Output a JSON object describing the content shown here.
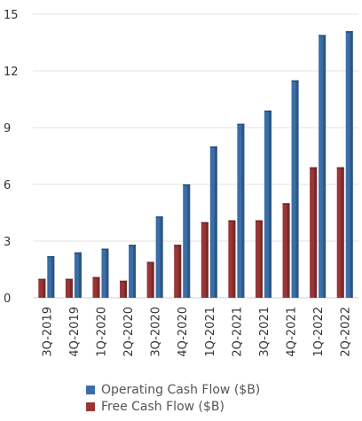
{
  "chart_data": {
    "type": "bar",
    "categories": [
      "3Q-2019",
      "4Q-2019",
      "1Q-2020",
      "2Q-2020",
      "3Q-2020",
      "4Q-2020",
      "1Q-2021",
      "2Q-2021",
      "3Q-2021",
      "4Q-2021",
      "1Q-2022",
      "2Q-2022"
    ],
    "series": [
      {
        "name": "Operating Cash Flow ($B)",
        "color": "#3a6ea8",
        "values": [
          2.2,
          2.4,
          2.6,
          2.8,
          4.3,
          6.0,
          8.0,
          9.2,
          9.9,
          11.5,
          13.9,
          14.1
        ]
      },
      {
        "name": "Free Cash Flow ($B)",
        "color": "#9b3535",
        "values": [
          1.0,
          1.0,
          1.1,
          0.9,
          1.9,
          2.8,
          4.0,
          4.1,
          4.1,
          5.0,
          6.9,
          6.9
        ]
      }
    ],
    "yticks": [
      0,
      3,
      6,
      9,
      12,
      15
    ],
    "ylim": [
      0,
      15
    ],
    "grid": true,
    "legend": "bottom"
  }
}
